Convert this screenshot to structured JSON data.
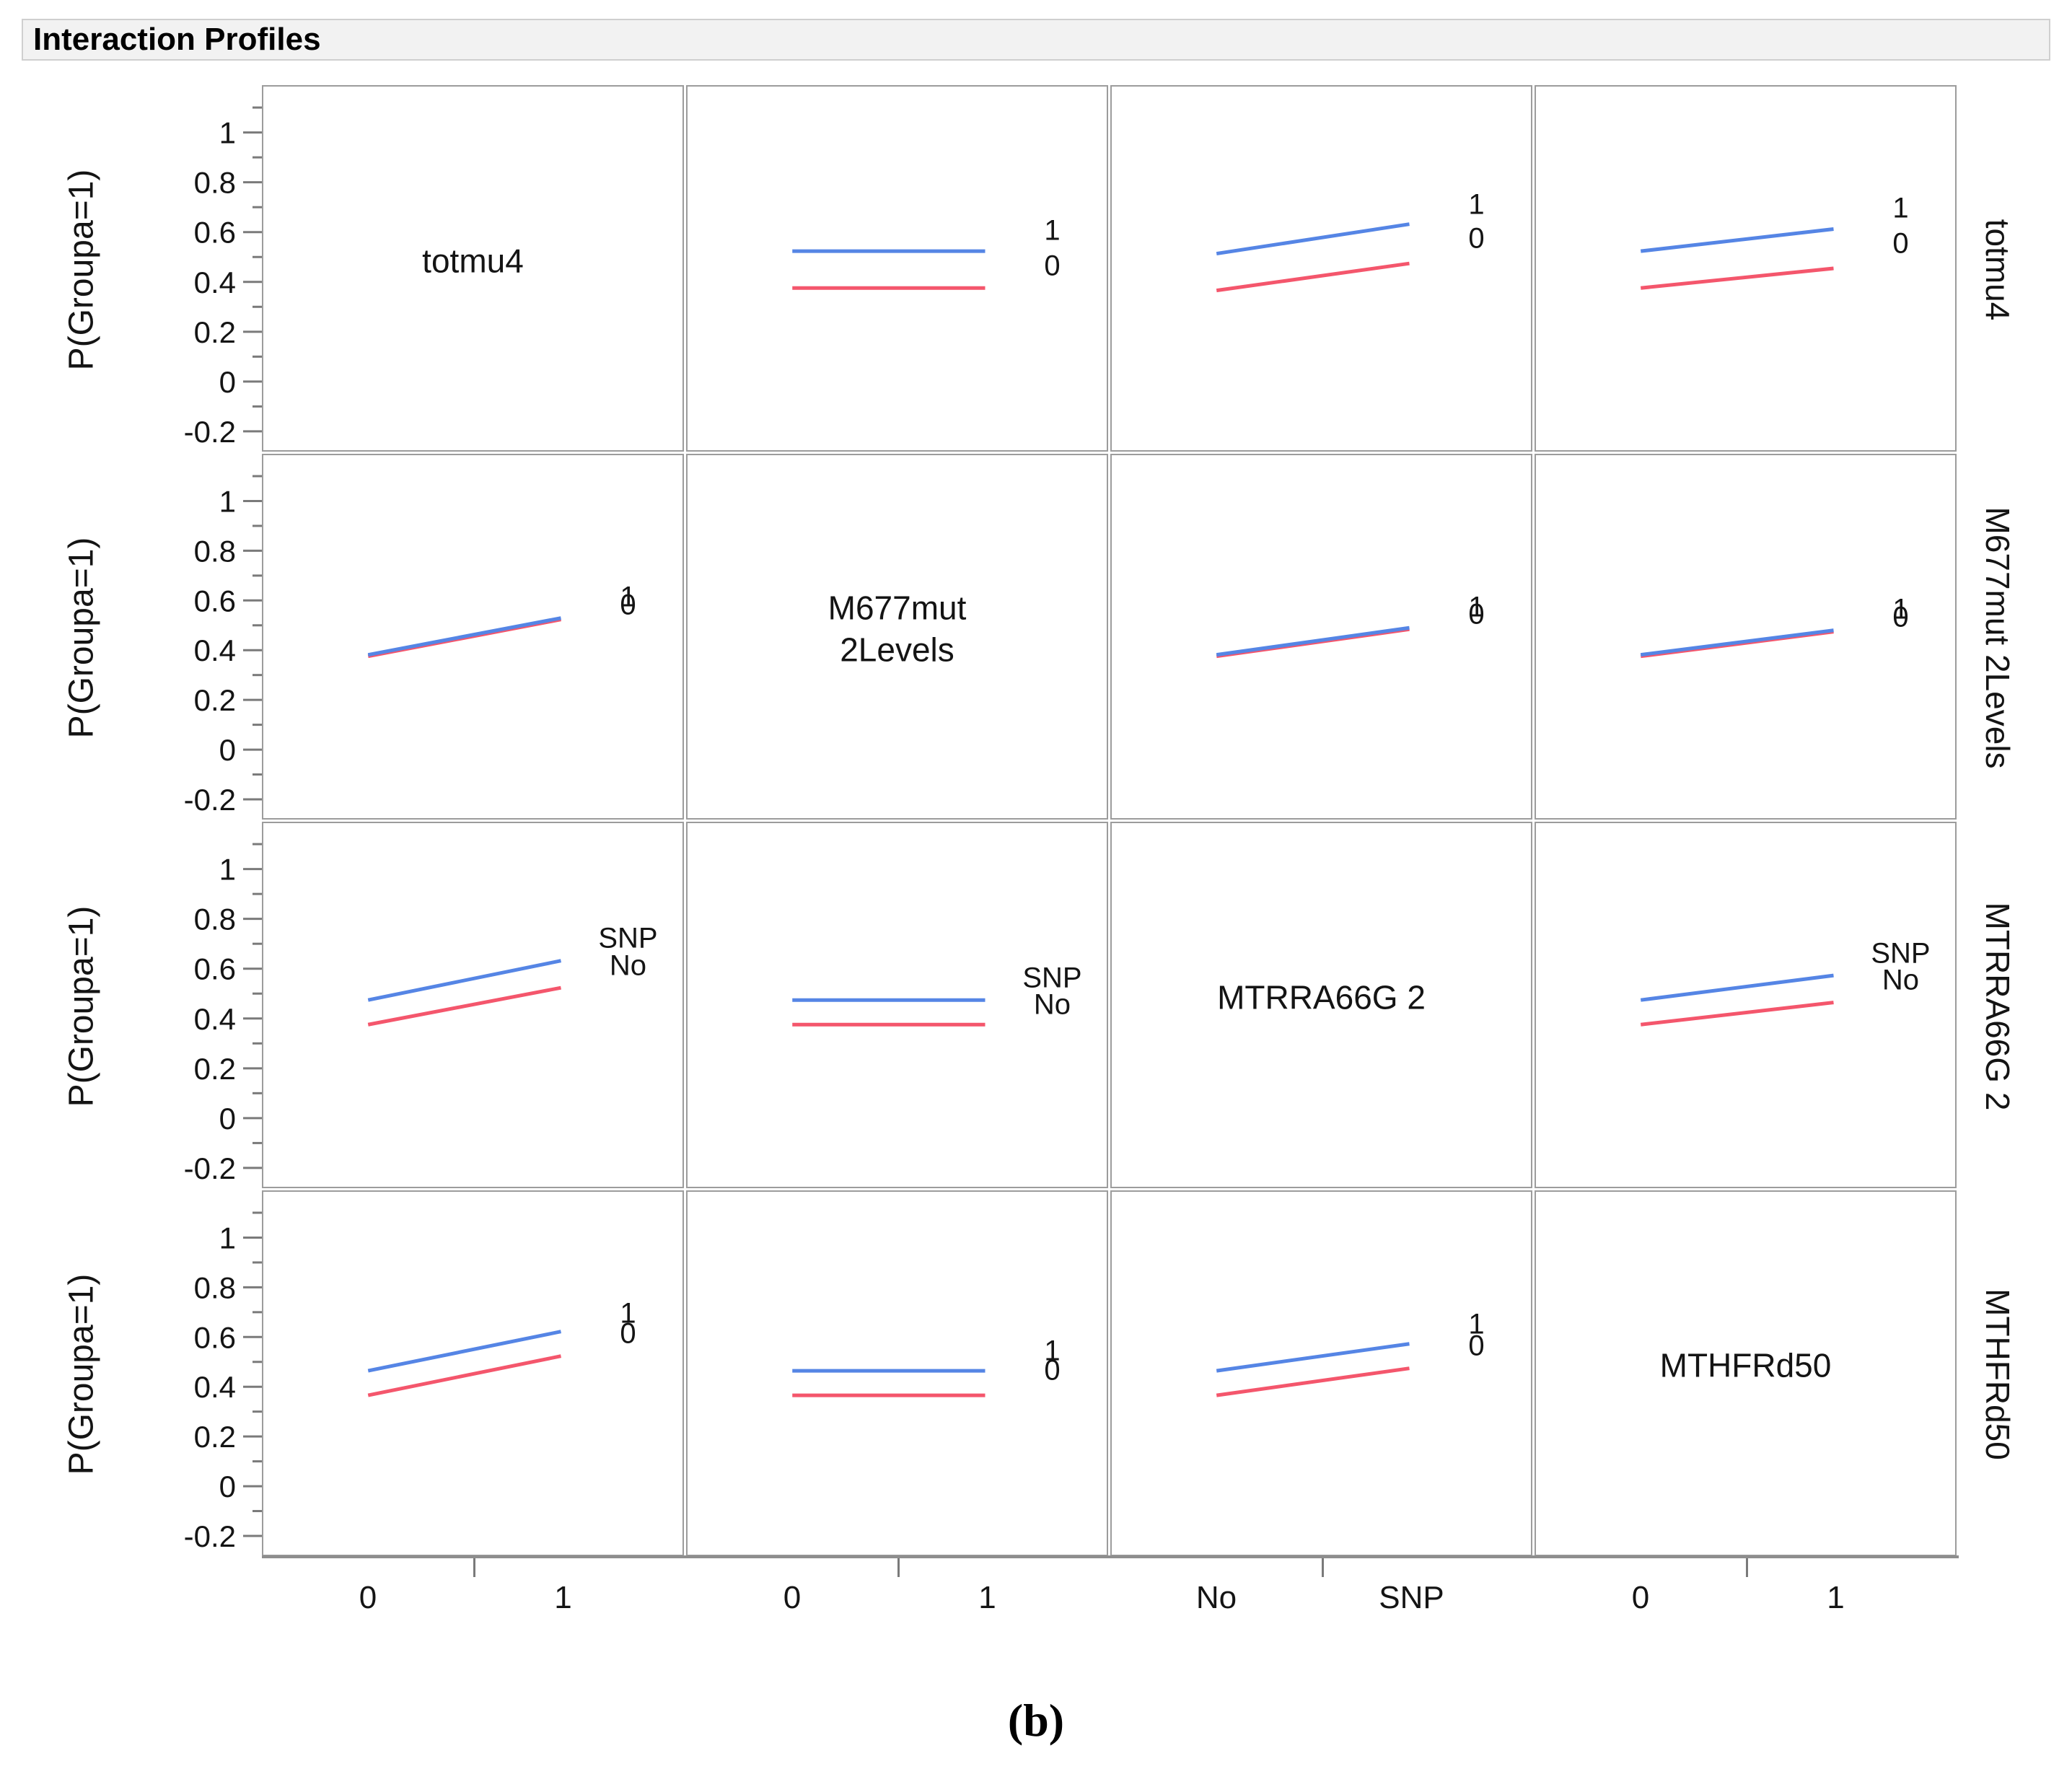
{
  "header": {
    "title": "Interaction Profiles"
  },
  "caption": "(b)",
  "colors": {
    "level1_line": "#5585e5",
    "level0_line": "#f4566c",
    "grid_border": "#9c9c9c",
    "header_bg": "#f2f2f2",
    "tick": "#7a7a7a"
  },
  "chart_data": {
    "type": "line",
    "subtype": "interaction-profile-matrix",
    "response": "P(Groupa=1)",
    "y_axis": {
      "title": "P(Groupa=1)",
      "ticks": [
        1,
        0.8,
        0.6,
        0.4,
        0.2,
        0,
        -0.2
      ],
      "minor_step": 0.1,
      "tick_min": -0.2,
      "tick_max": 1.1,
      "range_top": 1.19,
      "range_bottom": -0.29
    },
    "factors": [
      {
        "name": "totmu4",
        "levels": [
          "0",
          "1"
        ],
        "x_tick_labels": [
          "0",
          "1"
        ]
      },
      {
        "name": "M677mut 2Levels",
        "levels": [
          "0",
          "1"
        ],
        "x_tick_labels": [
          "0",
          "1"
        ]
      },
      {
        "name": "MTRRA66G 2",
        "levels": [
          "No",
          "SNP"
        ],
        "x_tick_labels": [
          "No",
          "SNP"
        ]
      },
      {
        "name": "MTHFRd50",
        "levels": [
          "0",
          "1"
        ],
        "x_tick_labels": [
          "0",
          "1"
        ]
      }
    ],
    "diag_labels": [
      [
        "totmu4"
      ],
      [
        "M677mut",
        "2Levels"
      ],
      [
        "MTRRA66G 2"
      ],
      [
        "MTHFRd50"
      ]
    ],
    "right_labels": [
      "totmu4",
      "M677mut 2Levels",
      "MTRRA66G 2",
      "MTHFRd50"
    ],
    "cells": [
      {
        "r": 0,
        "c": 0,
        "diag": 0
      },
      {
        "r": 0,
        "c": 1,
        "series": [
          {
            "label": "1",
            "color": "level1",
            "y": [
              0.52,
              0.52
            ],
            "label_v": 0.61
          },
          {
            "label": "0",
            "color": "level0",
            "y": [
              0.37,
              0.37
            ],
            "label_v": 0.465
          }
        ]
      },
      {
        "r": 0,
        "c": 2,
        "series": [
          {
            "label": "1",
            "color": "level1",
            "y": [
              0.51,
              0.63
            ],
            "label_v": 0.715
          },
          {
            "label": "0",
            "color": "level0",
            "y": [
              0.36,
              0.47
            ],
            "label_v": 0.575
          }
        ]
      },
      {
        "r": 0,
        "c": 3,
        "series": [
          {
            "label": "1",
            "color": "level1",
            "y": [
              0.52,
              0.61
            ],
            "label_v": 0.7
          },
          {
            "label": "0",
            "color": "level0",
            "y": [
              0.37,
              0.45
            ],
            "label_v": 0.555
          }
        ]
      },
      {
        "r": 1,
        "c": 0,
        "series": [
          {
            "label": "1",
            "color": "level1",
            "y": [
              0.376,
              0.526
            ],
            "label_v": 0.615
          },
          {
            "label": "0",
            "color": "level0",
            "y": [
              0.37,
              0.52
            ],
            "label_v": 0.585
          }
        ]
      },
      {
        "r": 1,
        "c": 1,
        "diag": 1
      },
      {
        "r": 1,
        "c": 2,
        "series": [
          {
            "label": "1",
            "color": "level1",
            "y": [
              0.376,
              0.486
            ],
            "label_v": 0.575
          },
          {
            "label": "0",
            "color": "level0",
            "y": [
              0.37,
              0.48
            ],
            "label_v": 0.545
          }
        ]
      },
      {
        "r": 1,
        "c": 3,
        "series": [
          {
            "label": "1",
            "color": "level1",
            "y": [
              0.376,
              0.476
            ],
            "label_v": 0.565
          },
          {
            "label": "0",
            "color": "level0",
            "y": [
              0.37,
              0.47
            ],
            "label_v": 0.535
          }
        ]
      },
      {
        "r": 2,
        "c": 0,
        "series": [
          {
            "label": "SNP",
            "color": "level1",
            "y": [
              0.47,
              0.63
            ],
            "label_v": 0.725
          },
          {
            "label": "No",
            "color": "level0",
            "y": [
              0.37,
              0.52
            ],
            "label_v": 0.615
          }
        ]
      },
      {
        "r": 2,
        "c": 1,
        "series": [
          {
            "label": "SNP",
            "color": "level1",
            "y": [
              0.47,
              0.47
            ],
            "label_v": 0.565
          },
          {
            "label": "No",
            "color": "level0",
            "y": [
              0.37,
              0.37
            ],
            "label_v": 0.455
          }
        ]
      },
      {
        "r": 2,
        "c": 2,
        "diag": 2
      },
      {
        "r": 2,
        "c": 3,
        "series": [
          {
            "label": "SNP",
            "color": "level1",
            "y": [
              0.47,
              0.57
            ],
            "label_v": 0.665
          },
          {
            "label": "No",
            "color": "level0",
            "y": [
              0.37,
              0.46
            ],
            "label_v": 0.555
          }
        ]
      },
      {
        "r": 3,
        "c": 0,
        "series": [
          {
            "label": "1",
            "color": "level1",
            "y": [
              0.46,
              0.62
            ],
            "label_v": 0.7
          },
          {
            "label": "0",
            "color": "level0",
            "y": [
              0.36,
              0.52
            ],
            "label_v": 0.615
          }
        ]
      },
      {
        "r": 3,
        "c": 1,
        "series": [
          {
            "label": "1",
            "color": "level1",
            "y": [
              0.46,
              0.46
            ],
            "label_v": 0.545
          },
          {
            "label": "0",
            "color": "level0",
            "y": [
              0.36,
              0.36
            ],
            "label_v": 0.465
          }
        ]
      },
      {
        "r": 3,
        "c": 2,
        "series": [
          {
            "label": "1",
            "color": "level1",
            "y": [
              0.46,
              0.57
            ],
            "label_v": 0.655
          },
          {
            "label": "0",
            "color": "level0",
            "y": [
              0.36,
              0.47
            ],
            "label_v": 0.565
          }
        ]
      },
      {
        "r": 3,
        "c": 3,
        "diag": 3
      }
    ]
  }
}
